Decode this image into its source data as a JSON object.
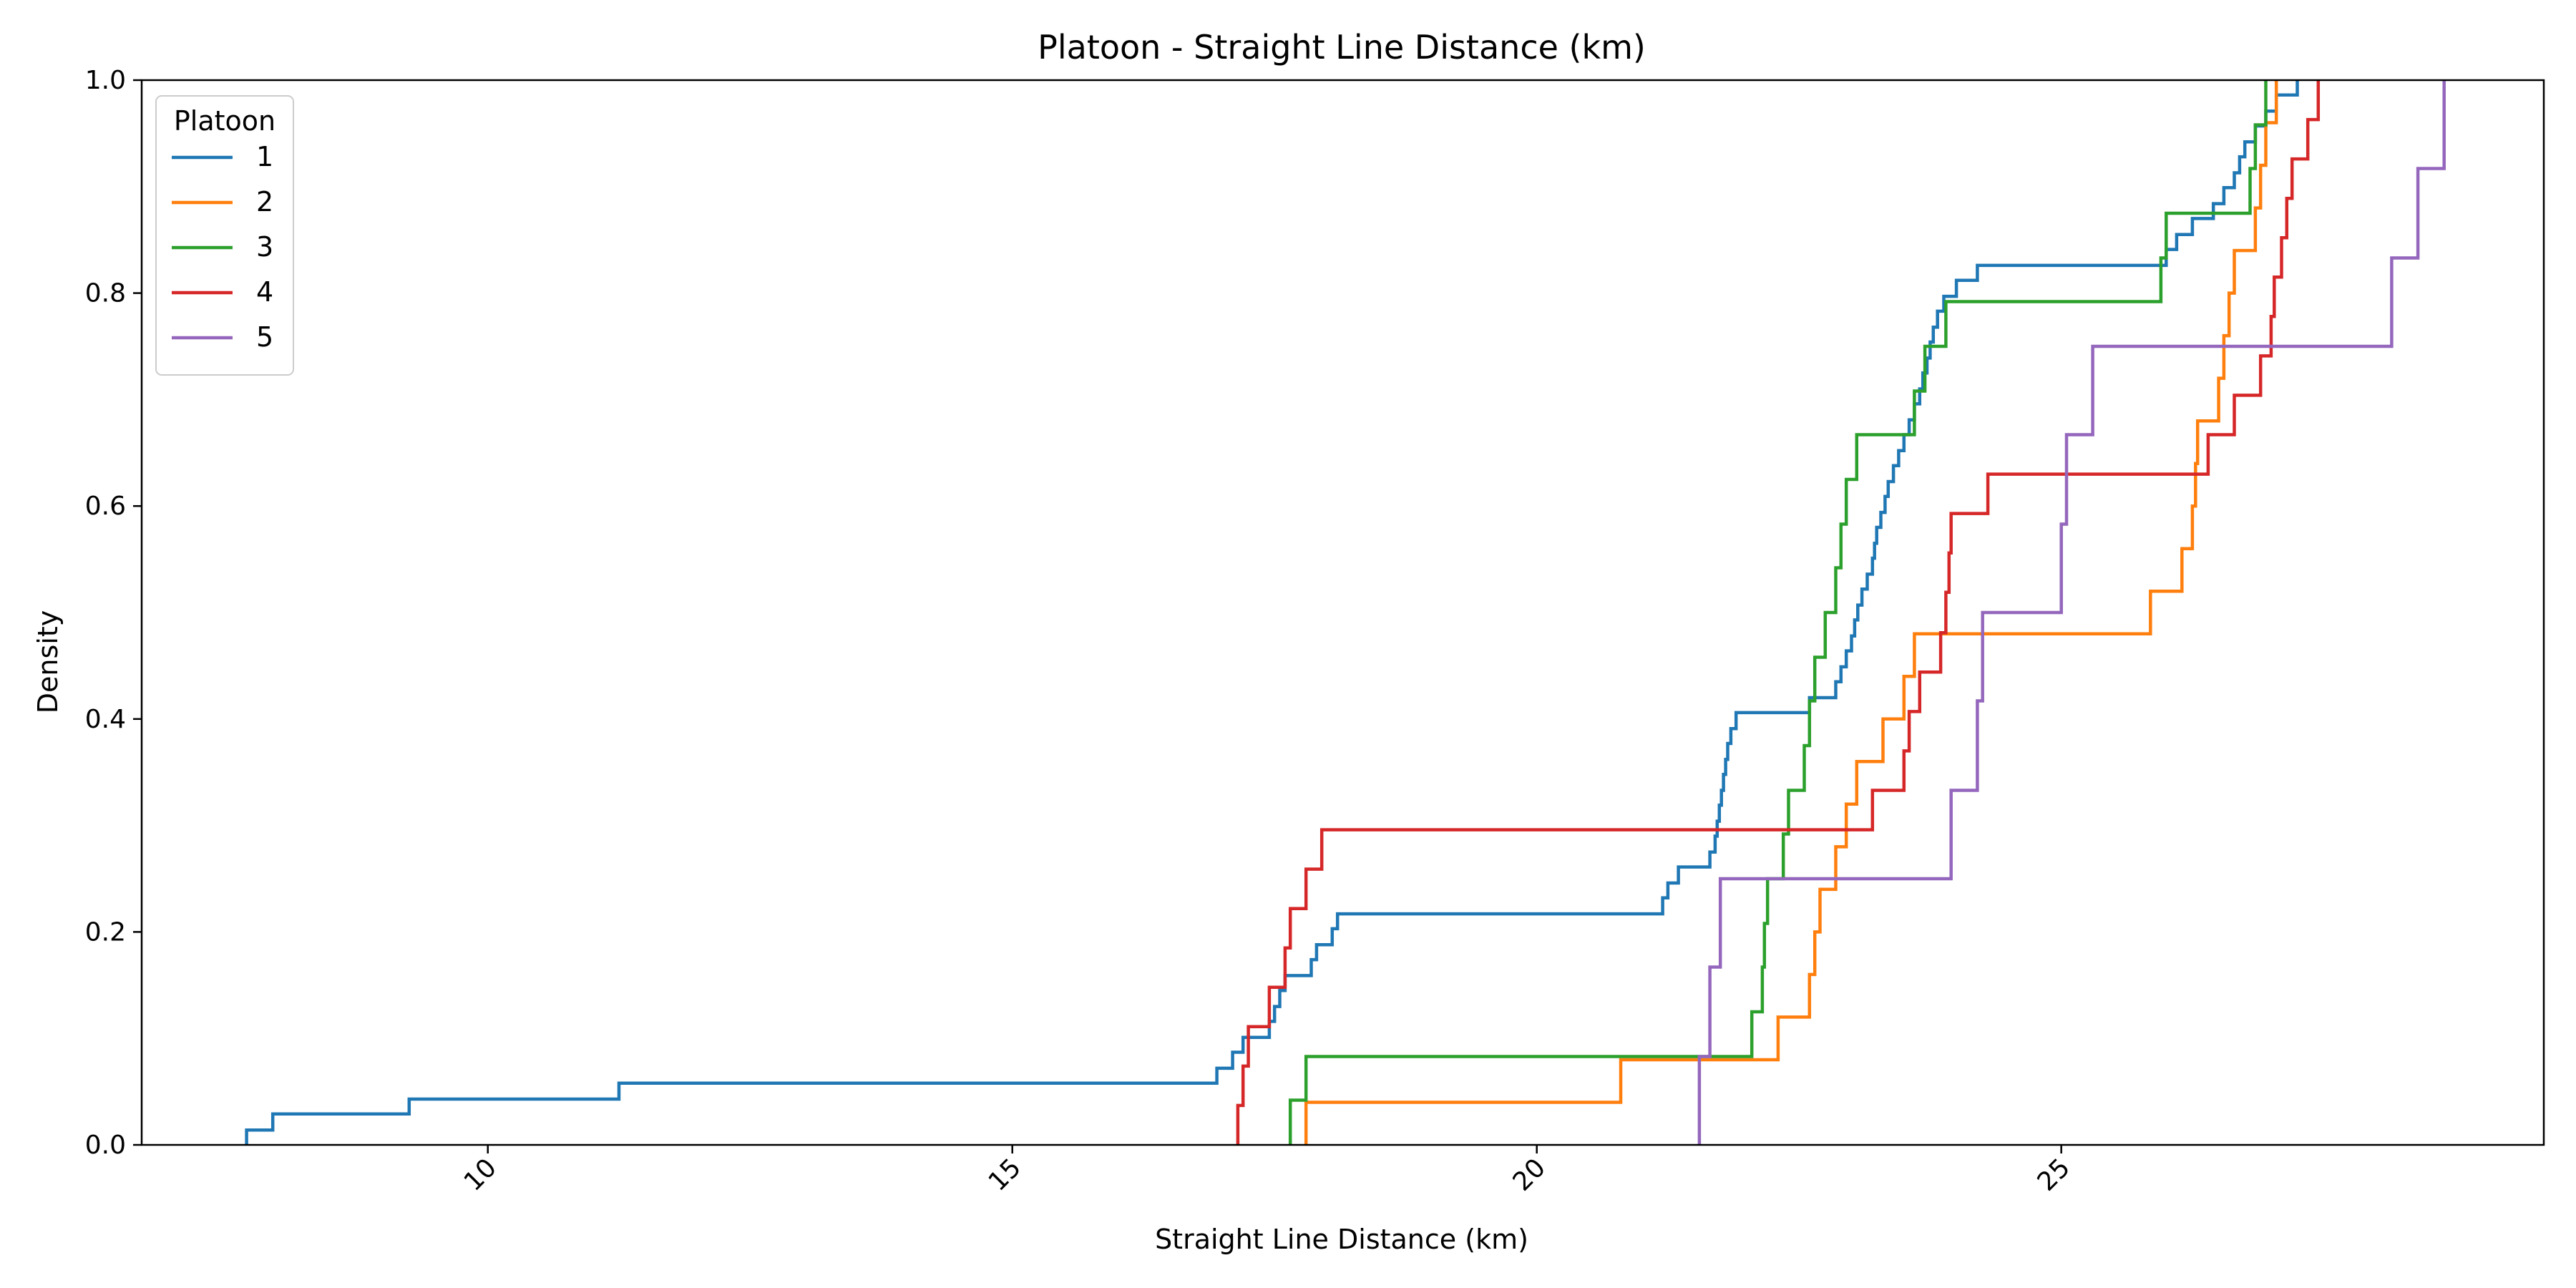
{
  "chart_data": {
    "type": "line",
    "step": true,
    "title": "Platoon - Straight Line Distance (km)",
    "xlabel": "Straight Line Distance (km)",
    "ylabel": "Density",
    "xlim": [
      6.7,
      29.6
    ],
    "ylim": [
      0.0,
      1.0
    ],
    "xticks": [
      10,
      15,
      20,
      25
    ],
    "xtick_labels": [
      "10",
      "15",
      "20",
      "25"
    ],
    "xtick_rotation": 45,
    "yticks": [
      0.0,
      0.2,
      0.4,
      0.6,
      0.8,
      1.0
    ],
    "ytick_labels": [
      "0.0",
      "0.2",
      "0.4",
      "0.6",
      "0.8",
      "1.0"
    ],
    "grid": false,
    "legend": {
      "title": "Platoon",
      "placement": "top-left"
    },
    "series": [
      {
        "name": "1",
        "color": "#1f77b4",
        "points": [
          [
            7.7,
            0.0
          ],
          [
            7.7,
            0.014
          ],
          [
            7.95,
            0.029
          ],
          [
            9.25,
            0.043
          ],
          [
            11.25,
            0.058
          ],
          [
            16.95,
            0.072
          ],
          [
            17.1,
            0.087
          ],
          [
            17.2,
            0.101
          ],
          [
            17.45,
            0.116
          ],
          [
            17.5,
            0.13
          ],
          [
            17.55,
            0.145
          ],
          [
            17.6,
            0.159
          ],
          [
            17.85,
            0.174
          ],
          [
            17.9,
            0.188
          ],
          [
            18.05,
            0.203
          ],
          [
            18.1,
            0.217
          ],
          [
            21.2,
            0.232
          ],
          [
            21.25,
            0.246
          ],
          [
            21.35,
            0.261
          ],
          [
            21.65,
            0.275
          ],
          [
            21.7,
            0.29
          ],
          [
            21.72,
            0.304
          ],
          [
            21.74,
            0.319
          ],
          [
            21.76,
            0.333
          ],
          [
            21.78,
            0.348
          ],
          [
            21.8,
            0.362
          ],
          [
            21.82,
            0.377
          ],
          [
            21.85,
            0.391
          ],
          [
            21.9,
            0.406
          ],
          [
            22.6,
            0.42
          ],
          [
            22.85,
            0.435
          ],
          [
            22.9,
            0.449
          ],
          [
            22.95,
            0.464
          ],
          [
            23.0,
            0.478
          ],
          [
            23.03,
            0.493
          ],
          [
            23.06,
            0.507
          ],
          [
            23.1,
            0.522
          ],
          [
            23.15,
            0.536
          ],
          [
            23.2,
            0.551
          ],
          [
            23.22,
            0.565
          ],
          [
            23.24,
            0.58
          ],
          [
            23.28,
            0.594
          ],
          [
            23.32,
            0.609
          ],
          [
            23.35,
            0.623
          ],
          [
            23.4,
            0.638
          ],
          [
            23.45,
            0.652
          ],
          [
            23.5,
            0.667
          ],
          [
            23.55,
            0.681
          ],
          [
            23.6,
            0.696
          ],
          [
            23.65,
            0.71
          ],
          [
            23.68,
            0.725
          ],
          [
            23.72,
            0.739
          ],
          [
            23.75,
            0.754
          ],
          [
            23.78,
            0.768
          ],
          [
            23.82,
            0.783
          ],
          [
            23.88,
            0.797
          ],
          [
            24.0,
            0.812
          ],
          [
            24.2,
            0.826
          ],
          [
            26.0,
            0.841
          ],
          [
            26.1,
            0.855
          ],
          [
            26.25,
            0.87
          ],
          [
            26.45,
            0.884
          ],
          [
            26.55,
            0.899
          ],
          [
            26.65,
            0.913
          ],
          [
            26.7,
            0.928
          ],
          [
            26.75,
            0.942
          ],
          [
            26.85,
            0.957
          ],
          [
            26.95,
            0.971
          ],
          [
            27.05,
            0.986
          ],
          [
            27.25,
            1.0
          ]
        ]
      },
      {
        "name": "2",
        "color": "#ff7f0e",
        "points": [
          [
            17.8,
            0.0
          ],
          [
            17.8,
            0.04
          ],
          [
            20.8,
            0.08
          ],
          [
            22.3,
            0.12
          ],
          [
            22.6,
            0.16
          ],
          [
            22.65,
            0.2
          ],
          [
            22.7,
            0.24
          ],
          [
            22.85,
            0.28
          ],
          [
            22.95,
            0.32
          ],
          [
            23.05,
            0.36
          ],
          [
            23.3,
            0.4
          ],
          [
            23.5,
            0.44
          ],
          [
            23.6,
            0.48
          ],
          [
            25.85,
            0.52
          ],
          [
            26.15,
            0.56
          ],
          [
            26.25,
            0.6
          ],
          [
            26.28,
            0.64
          ],
          [
            26.3,
            0.68
          ],
          [
            26.5,
            0.72
          ],
          [
            26.55,
            0.76
          ],
          [
            26.6,
            0.8
          ],
          [
            26.65,
            0.84
          ],
          [
            26.85,
            0.88
          ],
          [
            26.9,
            0.92
          ],
          [
            26.95,
            0.96
          ],
          [
            27.05,
            1.0
          ]
        ]
      },
      {
        "name": "3",
        "color": "#2ca02c",
        "points": [
          [
            17.65,
            0.0
          ],
          [
            17.65,
            0.042
          ],
          [
            17.8,
            0.083
          ],
          [
            22.05,
            0.125
          ],
          [
            22.15,
            0.167
          ],
          [
            22.17,
            0.208
          ],
          [
            22.2,
            0.25
          ],
          [
            22.35,
            0.292
          ],
          [
            22.4,
            0.333
          ],
          [
            22.55,
            0.375
          ],
          [
            22.6,
            0.417
          ],
          [
            22.65,
            0.458
          ],
          [
            22.75,
            0.5
          ],
          [
            22.85,
            0.542
          ],
          [
            22.9,
            0.583
          ],
          [
            22.95,
            0.625
          ],
          [
            23.05,
            0.667
          ],
          [
            23.6,
            0.708
          ],
          [
            23.7,
            0.75
          ],
          [
            23.9,
            0.792
          ],
          [
            25.95,
            0.833
          ],
          [
            26.0,
            0.875
          ],
          [
            26.8,
            0.917
          ],
          [
            26.85,
            0.958
          ],
          [
            26.95,
            1.0
          ]
        ]
      },
      {
        "name": "4",
        "color": "#d62728",
        "points": [
          [
            17.15,
            0.0
          ],
          [
            17.15,
            0.037
          ],
          [
            17.2,
            0.074
          ],
          [
            17.25,
            0.111
          ],
          [
            17.45,
            0.148
          ],
          [
            17.6,
            0.185
          ],
          [
            17.65,
            0.222
          ],
          [
            17.8,
            0.259
          ],
          [
            17.95,
            0.296
          ],
          [
            23.2,
            0.333
          ],
          [
            23.5,
            0.37
          ],
          [
            23.55,
            0.407
          ],
          [
            23.65,
            0.444
          ],
          [
            23.85,
            0.481
          ],
          [
            23.9,
            0.519
          ],
          [
            23.93,
            0.556
          ],
          [
            23.95,
            0.593
          ],
          [
            24.3,
            0.63
          ],
          [
            26.4,
            0.667
          ],
          [
            26.65,
            0.704
          ],
          [
            26.9,
            0.741
          ],
          [
            27.0,
            0.778
          ],
          [
            27.03,
            0.815
          ],
          [
            27.1,
            0.852
          ],
          [
            27.15,
            0.889
          ],
          [
            27.2,
            0.926
          ],
          [
            27.35,
            0.963
          ],
          [
            27.45,
            1.0
          ]
        ]
      },
      {
        "name": "5",
        "color": "#9467bd",
        "points": [
          [
            21.55,
            0.0
          ],
          [
            21.55,
            0.083
          ],
          [
            21.65,
            0.167
          ],
          [
            21.75,
            0.25
          ],
          [
            23.95,
            0.333
          ],
          [
            24.2,
            0.417
          ],
          [
            24.25,
            0.5
          ],
          [
            25.0,
            0.583
          ],
          [
            25.05,
            0.667
          ],
          [
            25.3,
            0.75
          ],
          [
            28.15,
            0.833
          ],
          [
            28.4,
            0.917
          ],
          [
            28.65,
            1.0
          ]
        ]
      }
    ]
  }
}
